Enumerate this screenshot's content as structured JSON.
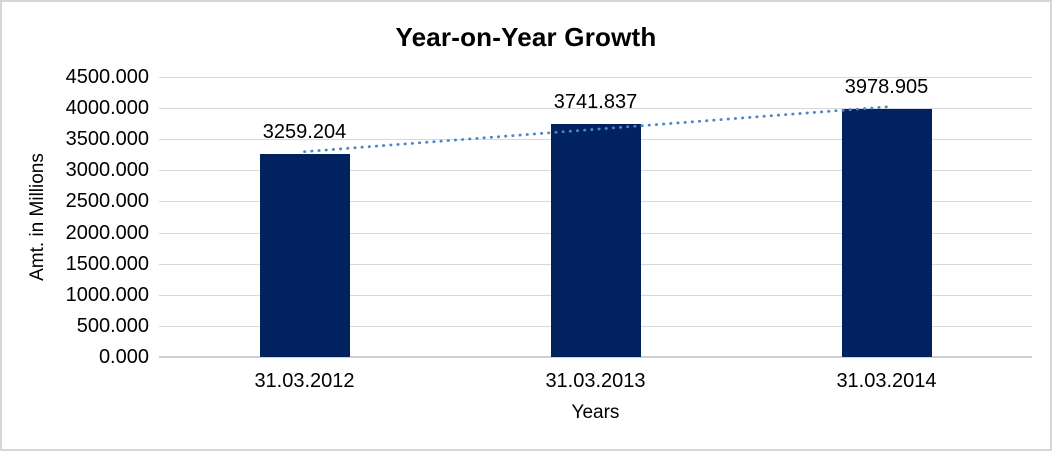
{
  "chart_data": {
    "type": "bar",
    "title": "Year-on-Year Growth",
    "categories": [
      "31.03.2012",
      "31.03.2013",
      "31.03.2014"
    ],
    "values": [
      3259.204,
      3741.837,
      3978.905
    ],
    "data_labels": [
      "3259.204",
      "3741.837",
      "3978.905"
    ],
    "xlabel": "Years",
    "ylabel": "Amt. in Millions",
    "ylim": [
      0,
      4500
    ],
    "ytick_step": 500,
    "ytick_values": [
      0,
      500,
      1000,
      1500,
      2000,
      2500,
      3000,
      3500,
      4000,
      4500
    ],
    "ytick_labels": [
      "0.000",
      "500.000",
      "1000.000",
      "1500.000",
      "2000.000",
      "2500.000",
      "3000.000",
      "3500.000",
      "4000.000",
      "4500.000"
    ],
    "grid": true,
    "legend": "none",
    "trendline": {
      "type": "linear",
      "style": "dotted"
    },
    "colors": {
      "bar": "#01215f",
      "trendline": "#4a86c8",
      "gridline": "#d9d9d9",
      "axis_line": "#d0d0d0",
      "text": "#000000",
      "frame_border": "#d6d6d6",
      "background": "#ffffff"
    }
  }
}
